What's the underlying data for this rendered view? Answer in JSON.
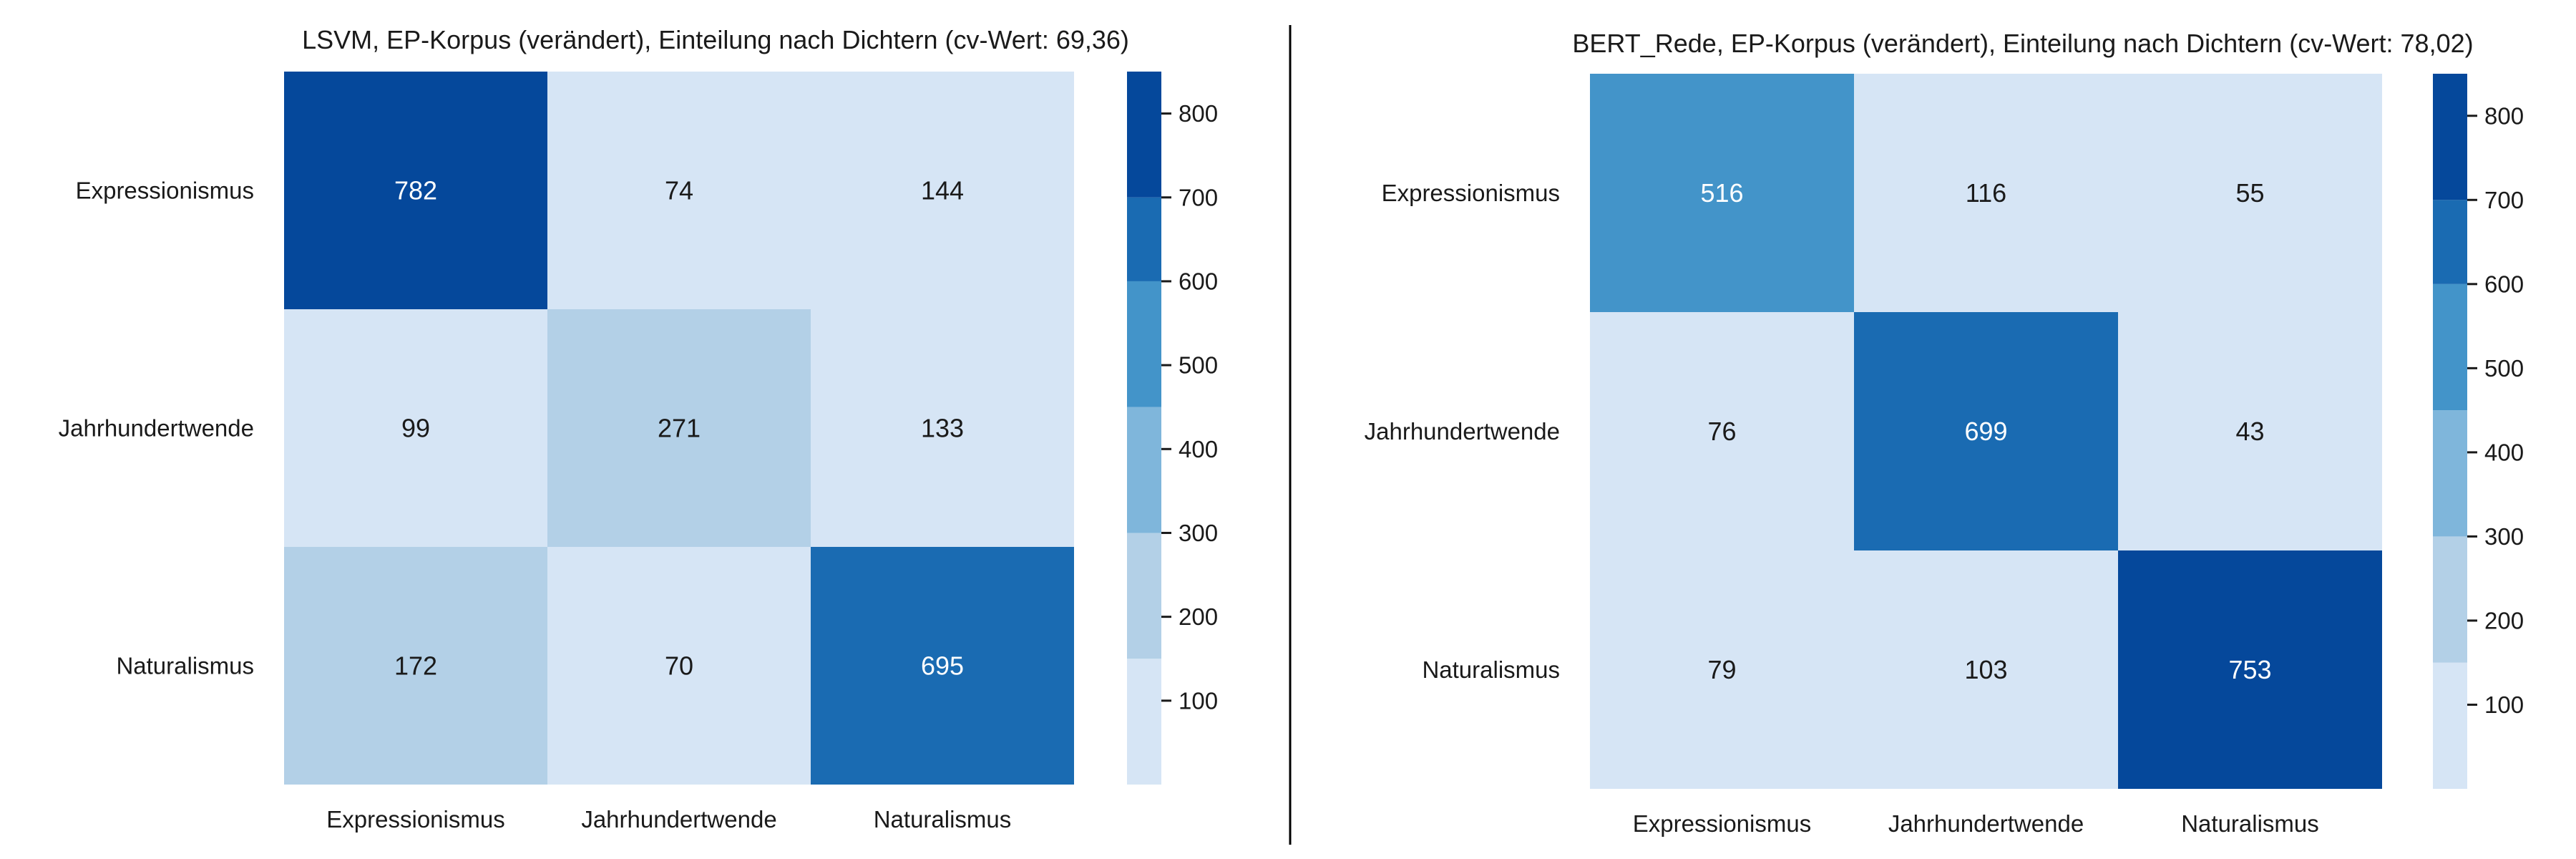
{
  "chart_data": [
    {
      "type": "heatmap",
      "title": "LSVM, EP-Korpus (verändert), Einteilung nach Dichtern (cv-Wert: 69,36)",
      "row_labels": [
        "Expressionismus",
        "Jahrhundertwende",
        "Naturalismus"
      ],
      "col_labels": [
        "Expressionismus",
        "Jahrhundertwende",
        "Naturalismus"
      ],
      "values": [
        [
          782,
          74,
          144
        ],
        [
          99,
          271,
          133
        ],
        [
          172,
          70,
          695
        ]
      ],
      "colorbar": {
        "ticks": [
          100,
          200,
          300,
          400,
          500,
          600,
          700,
          800
        ],
        "range": [
          0,
          850
        ]
      },
      "colormap": "Blues (discrete)"
    },
    {
      "type": "heatmap",
      "title": "BERT_Rede, EP-Korpus (verändert), Einteilung nach Dichtern (cv-Wert: 78,02)",
      "row_labels": [
        "Expressionismus",
        "Jahrhundertwende",
        "Naturalismus"
      ],
      "col_labels": [
        "Expressionismus",
        "Jahrhundertwende",
        "Naturalismus"
      ],
      "values": [
        [
          516,
          116,
          55
        ],
        [
          76,
          699,
          43
        ],
        [
          79,
          103,
          753
        ]
      ],
      "colorbar": {
        "ticks": [
          100,
          200,
          300,
          400,
          500,
          600,
          700,
          800
        ],
        "range": [
          0,
          850
        ]
      },
      "colormap": "Blues (discrete)"
    }
  ],
  "colors": {
    "bins": [
      "#d6e5f5",
      "#b3d0e7",
      "#7fb6db",
      "#4394c9",
      "#1a6bb2",
      "#05489b"
    ],
    "text_dark": "#1a1a1a",
    "text_light": "#ffffff",
    "divider": "#000000"
  }
}
